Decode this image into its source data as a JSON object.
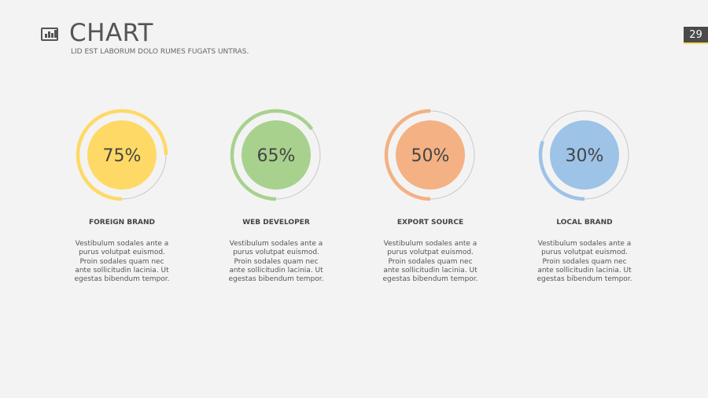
{
  "header": {
    "title": "CHART",
    "subtitle": "LID EST LABORUM DOLO RUMES FUGATS UNTRAS.",
    "page_number": "29",
    "icon": "bar-chart-icon"
  },
  "chart_data": {
    "type": "pie",
    "items": [
      {
        "label": "FOREIGN BRAND",
        "value": 75,
        "display": "75%",
        "color": "#ffd966",
        "description": "Vestibulum sodales ante a purus volutpat euismod. Proin sodales quam nec ante sollicitudin lacinia. Ut egestas bibendum tempor."
      },
      {
        "label": "WEB DEVELOPER",
        "value": 65,
        "display": "65%",
        "color": "#a9d18e",
        "description": "Vestibulum sodales ante a purus volutpat euismod. Proin sodales quam nec ante sollicitudin lacinia. Ut egestas bibendum tempor."
      },
      {
        "label": "EXPORT SOURCE",
        "value": 50,
        "display": "50%",
        "color": "#f4b183",
        "description": "Vestibulum sodales ante a purus volutpat euismod. Proin sodales quam nec ante sollicitudin lacinia. Ut egestas bibendum tempor."
      },
      {
        "label": "LOCAL BRAND",
        "value": 30,
        "display": "30%",
        "color": "#9dc3e6",
        "description": "Vestibulum sodales ante a purus volutpat euismod. Proin sodales quam nec ante sollicitudin lacinia. Ut egestas bibendum tempor."
      }
    ]
  }
}
